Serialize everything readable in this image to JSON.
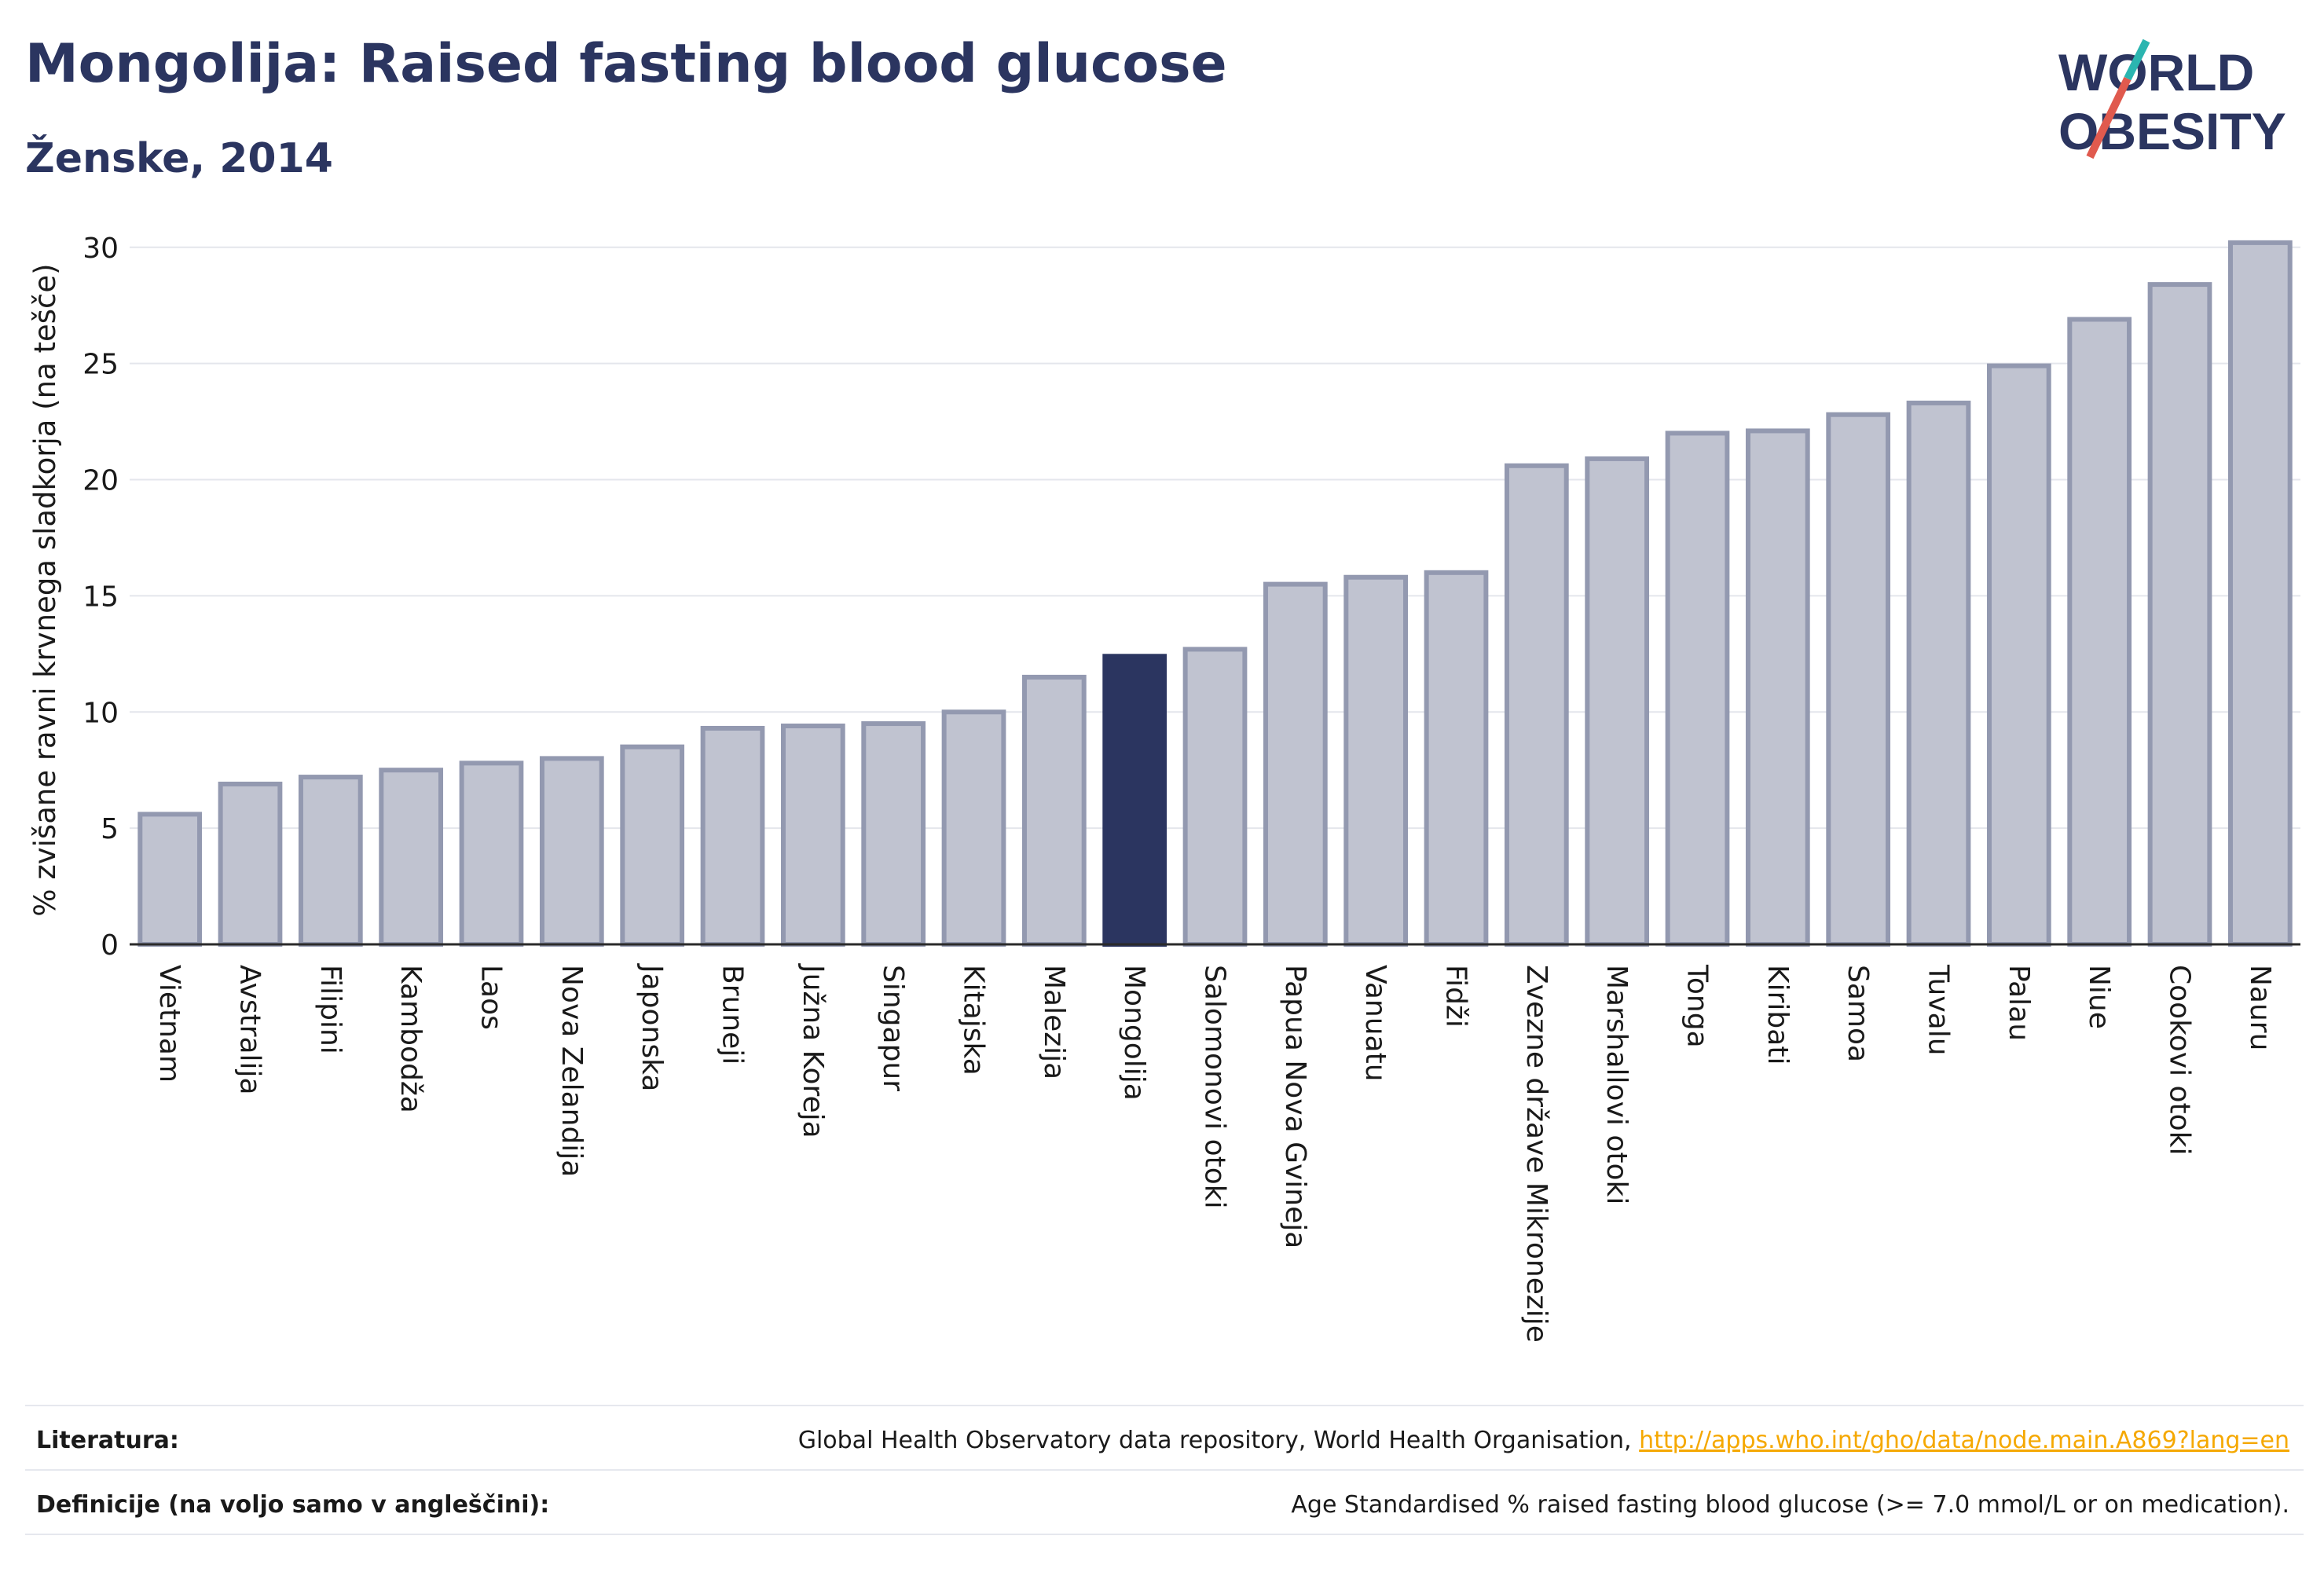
{
  "title": "Mongolija: Raised fasting blood glucose",
  "subtitle": "Ženske, 2014",
  "logo": {
    "line1": "WORLD",
    "line2": "OBESITY",
    "colors": {
      "text": "#2b3560",
      "slash1": "#e05a4e",
      "slash2": "#2bb5b0"
    }
  },
  "chart_data": {
    "type": "bar",
    "ylabel": "% zvišane ravni krvnega sladkorja (na tešče)",
    "ylim": [
      0,
      30.5
    ],
    "yticks": [
      0,
      5,
      10,
      15,
      20,
      25,
      30
    ],
    "grid": true,
    "highlight": "Mongolija",
    "colors": {
      "bar": "#c0c3d0",
      "bar_border": "#9399b0",
      "highlight": "#2b3560",
      "grid": "#e4e6ec"
    },
    "categories": [
      "Vietnam",
      "Avstralija",
      "Filipini",
      "Kambodža",
      "Laos",
      "Nova Zelandija",
      "Japonska",
      "Brunejі",
      "Južna Koreja",
      "Singapur",
      "Kitajska",
      "Malezija",
      "Mongolija",
      "Salomonovi otoki",
      "Papua Nova Gvineja",
      "Vanuatu",
      "Fidži",
      "Zvezne države Mikronezije",
      "Marshallovi otoki",
      "Tonga",
      "Kiribati",
      "Samoa",
      "Tuvalu",
      "Palau",
      "Niue",
      "Cookovi otoki",
      "Nauru"
    ],
    "values": [
      5.6,
      6.9,
      7.2,
      7.5,
      7.8,
      8.0,
      8.5,
      9.3,
      9.4,
      9.5,
      10.0,
      11.5,
      12.4,
      12.7,
      15.5,
      15.8,
      16.0,
      20.6,
      20.9,
      22.0,
      22.1,
      22.8,
      23.3,
      24.9,
      26.9,
      28.4,
      30.2
    ]
  },
  "footer": {
    "literatura_label": "Literatura:",
    "literatura_text": "Global Health Observatory data repository, World Health Organisation,",
    "literatura_link": "http://apps.who.int/gho/data/node.main.A869?lang=en",
    "definicije_label": "Definicije (na voljo samo v angleščini):",
    "definicije_text": "Age Standardised % raised fasting blood glucose (>= 7.0 mmol/L or on medication)."
  }
}
